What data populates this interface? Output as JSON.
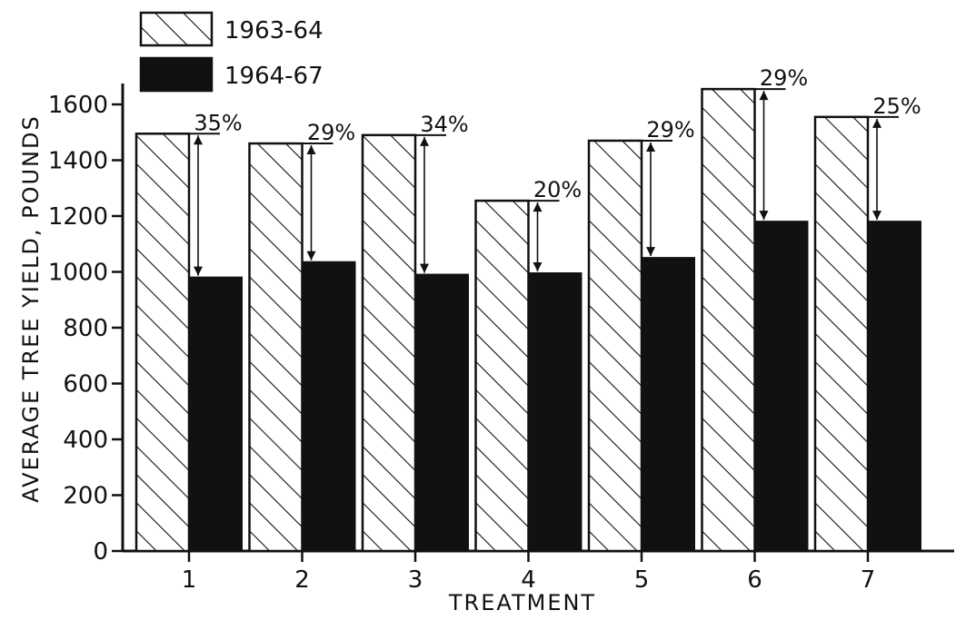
{
  "chart_data": {
    "type": "bar",
    "title": "",
    "xlabel": "TREATMENT",
    "ylabel": "AVERAGE TREE YIELD, POUNDS",
    "ylim": [
      0,
      1700
    ],
    "yticks": [
      0,
      200,
      400,
      600,
      800,
      1000,
      1200,
      1400,
      1600
    ],
    "grid": false,
    "legend_position": "top-left",
    "categories": [
      "1",
      "2",
      "3",
      "4",
      "5",
      "6",
      "7"
    ],
    "series": [
      {
        "name": "1963-64",
        "pattern": "hatched",
        "color": "#ffffff",
        "values": [
          1495,
          1460,
          1490,
          1255,
          1470,
          1655,
          1555
        ]
      },
      {
        "name": "1964-67",
        "pattern": "solid",
        "color": "#111111",
        "values": [
          980,
          1035,
          990,
          995,
          1050,
          1180,
          1180
        ]
      }
    ],
    "annotations": [
      "35%",
      "29%",
      "34%",
      "20%",
      "29%",
      "29%",
      "25%"
    ]
  }
}
